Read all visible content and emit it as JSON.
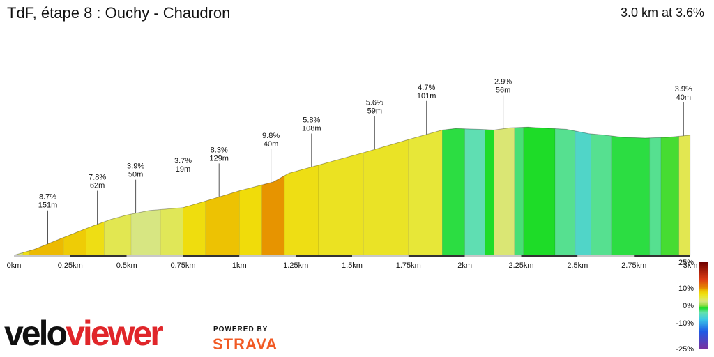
{
  "header": {
    "title": "TdF, étape 8 : Ouchy - Chaudron",
    "summary": "3.0 km at 3.6%"
  },
  "branding": {
    "velo": "velo",
    "viewer": "viewer",
    "powered_by": "POWERED BY",
    "strava": "STRAVA"
  },
  "chart_data": {
    "type": "area",
    "xlabel": "",
    "ylabel": "",
    "x_unit": "km",
    "xlim": [
      0,
      3.0
    ],
    "x_ticks": [
      {
        "v": 0,
        "label": "0km"
      },
      {
        "v": 0.25,
        "label": "0.25km"
      },
      {
        "v": 0.5,
        "label": "0.5km"
      },
      {
        "v": 0.75,
        "label": "0.75km"
      },
      {
        "v": 1.0,
        "label": "1km"
      },
      {
        "v": 1.25,
        "label": "1.25km"
      },
      {
        "v": 1.5,
        "label": "1.5km"
      },
      {
        "v": 1.75,
        "label": "1.75km"
      },
      {
        "v": 2.0,
        "label": "2km"
      },
      {
        "v": 2.25,
        "label": "2.25km"
      },
      {
        "v": 2.5,
        "label": "2.5km"
      },
      {
        "v": 2.75,
        "label": "2.75km"
      },
      {
        "v": 3.0,
        "label": "3km"
      }
    ],
    "elevation_relative_m": [
      [
        0.0,
        0
      ],
      [
        0.09,
        8
      ],
      [
        0.21,
        23
      ],
      [
        0.35,
        40
      ],
      [
        0.43,
        49
      ],
      [
        0.5,
        55
      ],
      [
        0.6,
        61
      ],
      [
        0.75,
        65
      ],
      [
        0.85,
        74
      ],
      [
        1.0,
        88
      ],
      [
        1.15,
        100
      ],
      [
        1.22,
        112
      ],
      [
        1.35,
        123
      ],
      [
        1.55,
        140
      ],
      [
        1.75,
        158
      ],
      [
        1.9,
        171
      ],
      [
        1.96,
        173
      ],
      [
        2.06,
        172
      ],
      [
        2.13,
        171
      ],
      [
        2.2,
        174
      ],
      [
        2.28,
        175
      ],
      [
        2.45,
        172
      ],
      [
        2.55,
        166
      ],
      [
        2.62,
        164
      ],
      [
        2.7,
        161
      ],
      [
        2.8,
        160
      ],
      [
        2.9,
        161
      ],
      [
        2.97,
        163
      ],
      [
        3.0,
        164
      ]
    ],
    "segment_gradients_pct": [
      [
        0.0,
        0.04,
        3.0
      ],
      [
        0.04,
        0.07,
        6.5
      ],
      [
        0.07,
        0.22,
        8.7
      ],
      [
        0.22,
        0.32,
        7.8
      ],
      [
        0.32,
        0.4,
        6.5
      ],
      [
        0.4,
        0.52,
        3.9
      ],
      [
        0.52,
        0.65,
        2.5
      ],
      [
        0.65,
        0.75,
        3.7
      ],
      [
        0.75,
        0.85,
        6.8
      ],
      [
        0.85,
        1.0,
        8.3
      ],
      [
        1.0,
        1.1,
        7.0
      ],
      [
        1.1,
        1.2,
        9.8
      ],
      [
        1.2,
        1.35,
        6.5
      ],
      [
        1.35,
        1.55,
        5.8
      ],
      [
        1.55,
        1.75,
        5.6
      ],
      [
        1.75,
        1.9,
        4.7
      ],
      [
        1.9,
        2.0,
        -2.0
      ],
      [
        2.0,
        2.09,
        -4.5
      ],
      [
        2.09,
        2.13,
        -1.5
      ],
      [
        2.13,
        2.22,
        2.9
      ],
      [
        2.22,
        2.26,
        -3.0
      ],
      [
        2.26,
        2.4,
        -1.5
      ],
      [
        2.4,
        2.49,
        -3.5
      ],
      [
        2.49,
        2.56,
        -6.0
      ],
      [
        2.56,
        2.65,
        -3.5
      ],
      [
        2.65,
        2.82,
        -2.0
      ],
      [
        2.82,
        2.87,
        -3.5
      ],
      [
        2.87,
        2.95,
        -1.0
      ],
      [
        2.95,
        3.0,
        3.9
      ]
    ],
    "annotations": [
      {
        "x": 0.15,
        "grade": "8.7%",
        "length": "151m"
      },
      {
        "x": 0.37,
        "grade": "7.8%",
        "length": "62m"
      },
      {
        "x": 0.54,
        "grade": "3.9%",
        "length": "50m"
      },
      {
        "x": 0.75,
        "grade": "3.7%",
        "length": "19m"
      },
      {
        "x": 0.91,
        "grade": "8.3%",
        "length": "129m"
      },
      {
        "x": 1.14,
        "grade": "9.8%",
        "length": "40m"
      },
      {
        "x": 1.32,
        "grade": "5.8%",
        "length": "108m"
      },
      {
        "x": 1.6,
        "grade": "5.6%",
        "length": "59m"
      },
      {
        "x": 1.83,
        "grade": "4.7%",
        "length": "101m"
      },
      {
        "x": 2.17,
        "grade": "2.9%",
        "length": "56m"
      },
      {
        "x": 2.97,
        "grade": "3.9%",
        "length": "40m"
      }
    ],
    "legend": {
      "type": "gradient-colorbar",
      "position": "bottom-right",
      "labels": [
        "25%",
        "10%",
        "0%",
        "-10%",
        "-25%"
      ],
      "values": [
        25,
        10,
        0,
        -10,
        -25
      ]
    },
    "grid": false
  }
}
